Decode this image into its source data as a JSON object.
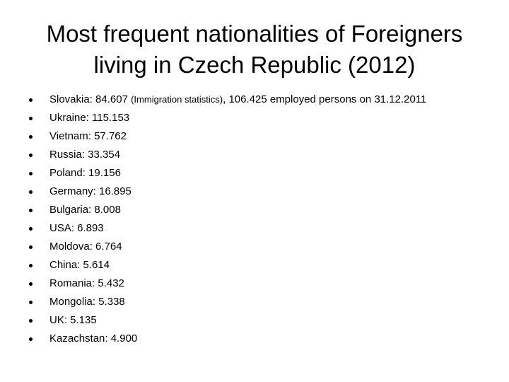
{
  "slide": {
    "title_line1": "Most frequent nationalities of Foreigners",
    "title_line2": "living in Czech Republic (2012)",
    "items": [
      {
        "text": "Slovakia: 84.607",
        "note": "(Immigration statistics)",
        "extra": ", 106.425 employed persons on 31.12.2011"
      },
      {
        "text": "Ukraine: 115.153"
      },
      {
        "text": "Vietnam: 57.762"
      },
      {
        "text": "Russia: 33.354"
      },
      {
        "text": "Poland: 19.156"
      },
      {
        "text": "Germany: 16.895"
      },
      {
        "text": "Bulgaria: 8.008"
      },
      {
        "text": "USA: 6.893"
      },
      {
        "text": "Moldova: 6.764"
      },
      {
        "text": "China: 5.614"
      },
      {
        "text": "Romania: 5.432"
      },
      {
        "text": "Mongolia: 5.338"
      },
      {
        "text": "UK: 5.135"
      },
      {
        "text": "Kazachstan: 4.900"
      }
    ]
  }
}
